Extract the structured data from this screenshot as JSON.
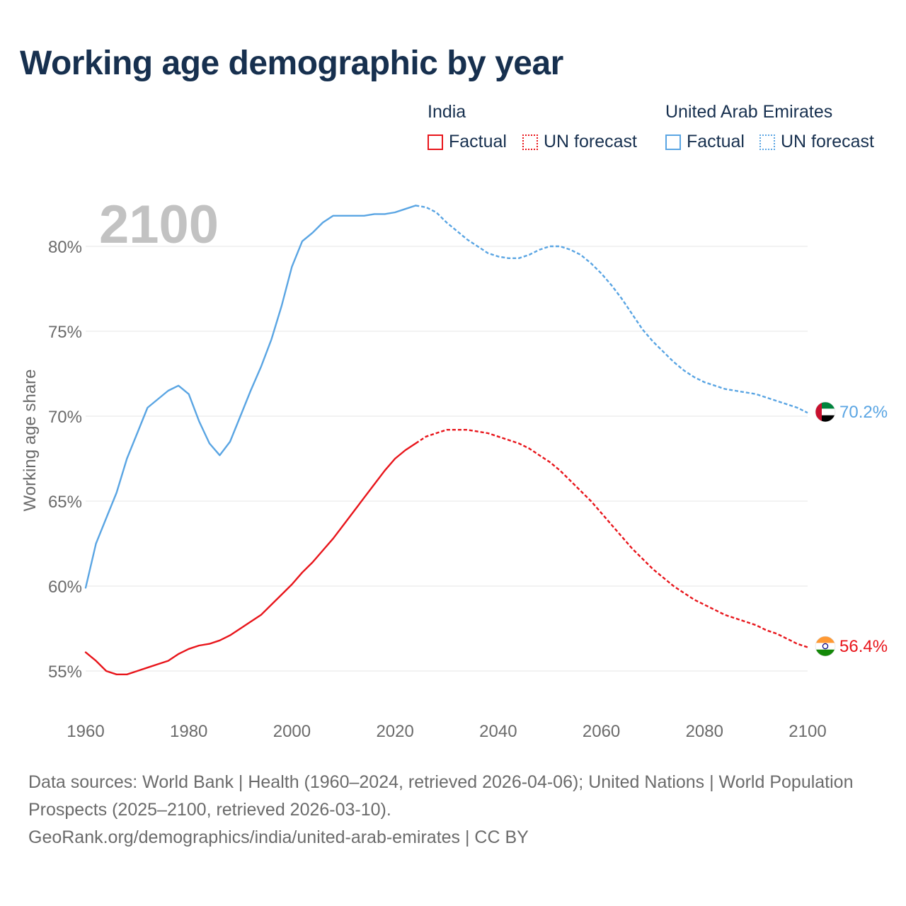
{
  "title": "Working age demographic by year",
  "legend": {
    "groups": [
      {
        "name": "India",
        "factual_label": "Factual",
        "forecast_label": "UN forecast",
        "color": "#e8151b"
      },
      {
        "name": "United Arab Emirates",
        "factual_label": "Factual",
        "forecast_label": "UN forecast",
        "color": "#5aa5e3"
      }
    ]
  },
  "footer": {
    "sources": "Data sources: World Bank | Health (1960–2024, retrieved 2026-04-06); United Nations | World Population Prospects (2025–2100, retrieved 2026-03-10).",
    "credit": "GeoRank.org/demographics/india/united-arab-emirates | CC BY"
  },
  "chart_data": {
    "type": "line",
    "title": "Working age demographic by year",
    "year_label": "2100",
    "xlabel": "",
    "ylabel": "Working age share",
    "xlim": [
      1960,
      2100
    ],
    "ylim": [
      52.5,
      83.5
    ],
    "xticks": [
      1960,
      1980,
      2000,
      2020,
      2040,
      2060,
      2080,
      2100
    ],
    "xtick_labels": [
      "1960",
      "1980",
      "2000",
      "2020",
      "2040",
      "2060",
      "2080",
      "2100"
    ],
    "yticks": [
      55,
      60,
      65,
      70,
      75,
      80
    ],
    "ytick_labels": [
      "55%",
      "60%",
      "65%",
      "70%",
      "75%",
      "80%"
    ],
    "grid": true,
    "factual_end_year": 2024,
    "series": [
      {
        "name": "India",
        "color": "#e8151b",
        "end_label": "56.4%",
        "x": [
          1960,
          1962,
          1964,
          1966,
          1968,
          1970,
          1972,
          1974,
          1976,
          1978,
          1980,
          1982,
          1984,
          1986,
          1988,
          1990,
          1992,
          1994,
          1996,
          1998,
          2000,
          2002,
          2004,
          2006,
          2008,
          2010,
          2012,
          2014,
          2016,
          2018,
          2020,
          2022,
          2024,
          2026,
          2028,
          2030,
          2032,
          2034,
          2036,
          2038,
          2040,
          2042,
          2044,
          2046,
          2048,
          2050,
          2052,
          2054,
          2056,
          2058,
          2060,
          2062,
          2064,
          2066,
          2068,
          2070,
          2072,
          2074,
          2076,
          2078,
          2080,
          2082,
          2084,
          2086,
          2088,
          2090,
          2092,
          2094,
          2096,
          2098,
          2100
        ],
        "y": [
          56.1,
          55.6,
          55.0,
          54.8,
          54.8,
          55.0,
          55.2,
          55.4,
          55.6,
          56.0,
          56.3,
          56.5,
          56.6,
          56.8,
          57.1,
          57.5,
          57.9,
          58.3,
          58.9,
          59.5,
          60.1,
          60.8,
          61.4,
          62.1,
          62.8,
          63.6,
          64.4,
          65.2,
          66.0,
          66.8,
          67.5,
          68.0,
          68.4,
          68.8,
          69.0,
          69.2,
          69.2,
          69.2,
          69.1,
          69.0,
          68.8,
          68.6,
          68.4,
          68.1,
          67.7,
          67.3,
          66.8,
          66.2,
          65.6,
          65.0,
          64.3,
          63.6,
          62.9,
          62.2,
          61.6,
          61.0,
          60.5,
          60.0,
          59.6,
          59.2,
          58.9,
          58.6,
          58.3,
          58.1,
          57.9,
          57.7,
          57.4,
          57.2,
          56.9,
          56.6,
          56.4
        ]
      },
      {
        "name": "United Arab Emirates",
        "color": "#5aa5e3",
        "end_label": "70.2%",
        "x": [
          1960,
          1962,
          1964,
          1966,
          1968,
          1970,
          1972,
          1974,
          1976,
          1978,
          1980,
          1982,
          1984,
          1986,
          1988,
          1990,
          1992,
          1994,
          1996,
          1998,
          2000,
          2002,
          2004,
          2006,
          2008,
          2010,
          2012,
          2014,
          2016,
          2018,
          2020,
          2022,
          2024,
          2026,
          2028,
          2030,
          2032,
          2034,
          2036,
          2038,
          2040,
          2042,
          2044,
          2046,
          2048,
          2050,
          2052,
          2054,
          2056,
          2058,
          2060,
          2062,
          2064,
          2066,
          2068,
          2070,
          2072,
          2074,
          2076,
          2078,
          2080,
          2082,
          2084,
          2086,
          2088,
          2090,
          2092,
          2094,
          2096,
          2098,
          2100
        ],
        "y": [
          59.9,
          62.5,
          64.0,
          65.5,
          67.5,
          69.0,
          70.5,
          71.0,
          71.5,
          71.8,
          71.3,
          69.7,
          68.4,
          67.7,
          68.5,
          70.0,
          71.5,
          72.9,
          74.5,
          76.5,
          78.8,
          80.3,
          80.8,
          81.4,
          81.8,
          81.8,
          81.8,
          81.8,
          81.9,
          81.9,
          82.0,
          82.2,
          82.4,
          82.3,
          82.0,
          81.4,
          80.9,
          80.4,
          80.0,
          79.6,
          79.4,
          79.3,
          79.3,
          79.5,
          79.8,
          80.0,
          80.0,
          79.8,
          79.5,
          79.0,
          78.4,
          77.7,
          76.9,
          76.0,
          75.1,
          74.4,
          73.8,
          73.2,
          72.7,
          72.3,
          72.0,
          71.8,
          71.6,
          71.5,
          71.4,
          71.3,
          71.1,
          70.9,
          70.7,
          70.5,
          70.2
        ]
      }
    ]
  }
}
